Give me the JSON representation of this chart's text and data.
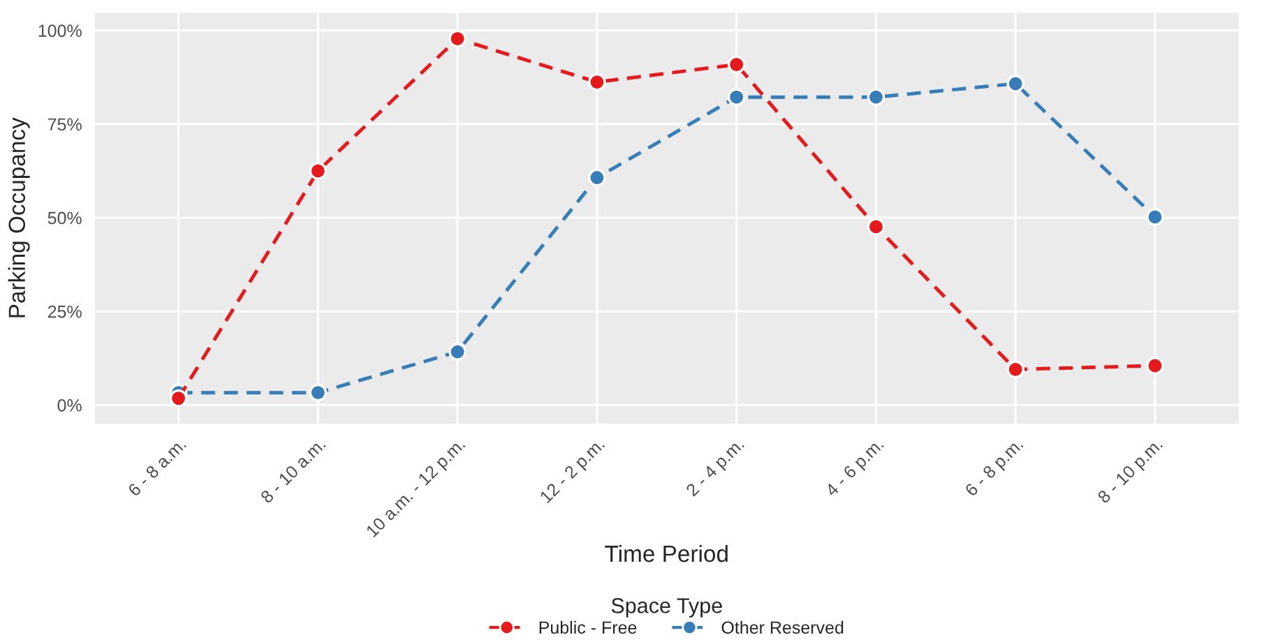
{
  "chart_data": {
    "type": "line",
    "xlabel": "Time Period",
    "ylabel": "Parking Occupancy",
    "legend_title": "Space Type",
    "categories": [
      "6 - 8 a.m.",
      "8 - 10 a.m.",
      "10 a.m. - 12 p.m.",
      "12 - 2 p.m.",
      "2 - 4 p.m.",
      "4 - 6 p.m.",
      "6 - 8 p.m.",
      "8 - 10 p.m."
    ],
    "series": [
      {
        "name": "Public - Free",
        "color": "#e41a1c",
        "values": [
          0.018,
          0.625,
          0.978,
          0.862,
          0.909,
          0.476,
          0.095,
          0.105
        ]
      },
      {
        "name": "Other Reserved",
        "color": "#377eb8",
        "values": [
          0.033,
          0.033,
          0.142,
          0.607,
          0.822,
          0.822,
          0.858,
          0.502
        ]
      }
    ],
    "ylim": [
      -0.05,
      1.047
    ],
    "yticks": [
      {
        "value": 0,
        "label": "0%"
      },
      {
        "value": 0.25,
        "label": "25%"
      },
      {
        "value": 0.5,
        "label": "50%"
      },
      {
        "value": 0.75,
        "label": "75%"
      },
      {
        "value": 1,
        "label": "100%"
      }
    ],
    "grid": true,
    "legend": "bottom",
    "marker": "circle",
    "line_style": "dashed"
  }
}
